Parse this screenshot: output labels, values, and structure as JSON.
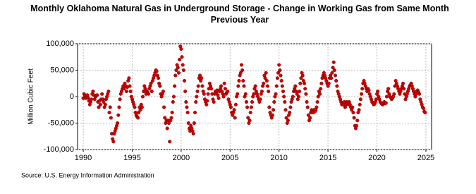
{
  "chart_data": {
    "type": "scatter",
    "title": "Monthly Oklahoma Natural Gas in Underground Storage - Change in Working Gas from Same Month Previous Year",
    "y_label": "Million Cubic Feet",
    "source": "Source: U.S. Energy Information Administration",
    "xlim": [
      1989.42,
      2025.58
    ],
    "ylim": [
      -100000,
      100000
    ],
    "xticks": [
      1990,
      1995,
      2000,
      2005,
      2010,
      2015,
      2020,
      2025
    ],
    "yticks": [
      {
        "value": -100000,
        "label": "-100,000"
      },
      {
        "value": -50000,
        "label": "-50,000"
      },
      0,
      {
        "value": 50000,
        "label": "50,000"
      },
      {
        "value": 100000,
        "label": "100,000"
      }
    ],
    "grid": true,
    "series": [
      {
        "color": "#cc0000",
        "x": [
          1990,
          1990.083,
          1990.167,
          1990.25,
          1990.333,
          1990.417,
          1990.5,
          1990.583,
          1990.667,
          1990.75,
          1990.833,
          1990.917,
          1991,
          1991.083,
          1991.167,
          1991.25,
          1991.333,
          1991.417,
          1991.5,
          1991.583,
          1991.667,
          1991.75,
          1991.833,
          1991.917,
          1992,
          1992.083,
          1992.167,
          1992.25,
          1992.333,
          1992.417,
          1992.5,
          1992.583,
          1992.667,
          1992.75,
          1992.833,
          1992.917,
          1993,
          1993.083,
          1993.167,
          1993.25,
          1993.333,
          1993.417,
          1993.5,
          1993.583,
          1993.667,
          1993.75,
          1993.833,
          1993.917,
          1994,
          1994.083,
          1994.167,
          1994.25,
          1994.333,
          1994.417,
          1994.5,
          1994.583,
          1994.667,
          1994.75,
          1994.833,
          1994.917,
          1995,
          1995.083,
          1995.167,
          1995.25,
          1995.333,
          1995.417,
          1995.5,
          1995.583,
          1995.667,
          1995.75,
          1995.833,
          1995.917,
          1996,
          1996.083,
          1996.167,
          1996.25,
          1996.333,
          1996.417,
          1996.5,
          1996.583,
          1996.667,
          1996.75,
          1996.833,
          1996.917,
          1997,
          1997.083,
          1997.167,
          1997.25,
          1997.333,
          1997.417,
          1997.5,
          1997.583,
          1997.667,
          1997.75,
          1997.833,
          1997.917,
          1998,
          1998.083,
          1998.167,
          1998.25,
          1998.333,
          1998.417,
          1998.5,
          1998.583,
          1998.667,
          1998.75,
          1998.833,
          1998.917,
          1999,
          1999.083,
          1999.167,
          1999.25,
          1999.333,
          1999.417,
          1999.5,
          1999.583,
          1999.667,
          1999.75,
          1999.833,
          1999.917,
          2000,
          2000.083,
          2000.167,
          2000.25,
          2000.333,
          2000.417,
          2000.5,
          2000.583,
          2000.667,
          2000.75,
          2000.833,
          2000.917,
          2001,
          2001.083,
          2001.167,
          2001.25,
          2001.333,
          2001.417,
          2001.5,
          2001.583,
          2001.667,
          2001.75,
          2001.833,
          2001.917,
          2002,
          2002.083,
          2002.167,
          2002.25,
          2002.333,
          2002.417,
          2002.5,
          2002.583,
          2002.667,
          2002.75,
          2002.833,
          2002.917,
          2003,
          2003.083,
          2003.167,
          2003.25,
          2003.333,
          2003.417,
          2003.5,
          2003.583,
          2003.667,
          2003.75,
          2003.833,
          2003.917,
          2004,
          2004.083,
          2004.167,
          2004.25,
          2004.333,
          2004.417,
          2004.5,
          2004.583,
          2004.667,
          2004.75,
          2004.833,
          2004.917,
          2005,
          2005.083,
          2005.167,
          2005.25,
          2005.333,
          2005.417,
          2005.5,
          2005.583,
          2005.667,
          2005.75,
          2005.833,
          2005.917,
          2006,
          2006.083,
          2006.167,
          2006.25,
          2006.333,
          2006.417,
          2006.5,
          2006.583,
          2006.667,
          2006.75,
          2006.833,
          2006.917,
          2007,
          2007.083,
          2007.167,
          2007.25,
          2007.333,
          2007.417,
          2007.5,
          2007.583,
          2007.667,
          2007.75,
          2007.833,
          2007.917,
          2008,
          2008.083,
          2008.167,
          2008.25,
          2008.333,
          2008.417,
          2008.5,
          2008.583,
          2008.667,
          2008.75,
          2008.833,
          2008.917,
          2009,
          2009.083,
          2009.167,
          2009.25,
          2009.333,
          2009.417,
          2009.5,
          2009.583,
          2009.667,
          2009.75,
          2009.833,
          2009.917,
          2010,
          2010.083,
          2010.167,
          2010.25,
          2010.333,
          2010.417,
          2010.5,
          2010.583,
          2010.667,
          2010.75,
          2010.833,
          2010.917,
          2011,
          2011.083,
          2011.167,
          2011.25,
          2011.333,
          2011.417,
          2011.5,
          2011.583,
          2011.667,
          2011.75,
          2011.833,
          2011.917,
          2012,
          2012.083,
          2012.167,
          2012.25,
          2012.333,
          2012.417,
          2012.5,
          2012.583,
          2012.667,
          2012.75,
          2012.833,
          2012.917,
          2013,
          2013.083,
          2013.167,
          2013.25,
          2013.333,
          2013.417,
          2013.5,
          2013.583,
          2013.667,
          2013.75,
          2013.833,
          2013.917,
          2014,
          2014.083,
          2014.167,
          2014.25,
          2014.333,
          2014.417,
          2014.5,
          2014.583,
          2014.667,
          2014.75,
          2014.833,
          2014.917,
          2015,
          2015.083,
          2015.167,
          2015.25,
          2015.333,
          2015.417,
          2015.5,
          2015.583,
          2015.667,
          2015.75,
          2015.833,
          2015.917,
          2016,
          2016.083,
          2016.167,
          2016.25,
          2016.333,
          2016.417,
          2016.5,
          2016.583,
          2016.667,
          2016.75,
          2016.833,
          2016.917,
          2017,
          2017.083,
          2017.167,
          2017.25,
          2017.333,
          2017.417,
          2017.5,
          2017.583,
          2017.667,
          2017.75,
          2017.833,
          2017.917,
          2018,
          2018.083,
          2018.167,
          2018.25,
          2018.333,
          2018.417,
          2018.5,
          2018.583,
          2018.667,
          2018.75,
          2018.833,
          2018.917,
          2019,
          2019.083,
          2019.167,
          2019.25,
          2019.333,
          2019.417,
          2019.5,
          2019.583,
          2019.667,
          2019.75,
          2019.833,
          2019.917,
          2020,
          2020.083,
          2020.167,
          2020.25,
          2020.333,
          2020.417,
          2020.5,
          2020.583,
          2020.667,
          2020.75,
          2020.833,
          2020.917,
          2021,
          2021.083,
          2021.167,
          2021.25,
          2021.333,
          2021.417,
          2021.5,
          2021.583,
          2021.667,
          2021.75,
          2021.833,
          2021.917,
          2022,
          2022.083,
          2022.167,
          2022.25,
          2022.333,
          2022.417,
          2022.5,
          2022.583,
          2022.667,
          2022.75,
          2022.833,
          2022.917,
          2023,
          2023.083,
          2023.167,
          2023.25,
          2023.333,
          2023.417,
          2023.5,
          2023.583,
          2023.667,
          2023.75,
          2023.833,
          2023.917,
          2024,
          2024.083,
          2024.167,
          2024.25,
          2024.333,
          2024.417,
          2024.5,
          2024.583,
          2024.667,
          2024.75,
          2024.833,
          2024.917
        ],
        "values": [
          -3000,
          5000,
          2000,
          -3000,
          0,
          3000,
          -2000,
          -8000,
          -15000,
          -10000,
          -5000,
          5000,
          10000,
          3000,
          -5000,
          0,
          2000,
          3000,
          -10000,
          -20000,
          -8000,
          -15000,
          -5000,
          5000,
          -5000,
          -10000,
          -20000,
          -15000,
          -5000,
          0,
          5000,
          10000,
          -30000,
          -20000,
          -40000,
          -70000,
          -80000,
          -85000,
          -70000,
          -65000,
          -60000,
          -55000,
          -50000,
          -35000,
          -20000,
          -5000,
          5000,
          10000,
          15000,
          20000,
          15000,
          25000,
          20000,
          10000,
          18000,
          30000,
          35000,
          20000,
          10000,
          0,
          -5000,
          -10000,
          -15000,
          -20000,
          -30000,
          -35000,
          -38000,
          -40000,
          -30000,
          -20000,
          -25000,
          -15000,
          -20000,
          0,
          10000,
          20000,
          15000,
          5000,
          10000,
          8000,
          5000,
          15000,
          20000,
          25000,
          10000,
          30000,
          35000,
          40000,
          45000,
          50000,
          48000,
          40000,
          35000,
          25000,
          20000,
          5000,
          0,
          5000,
          10000,
          -20000,
          -40000,
          -50000,
          -45000,
          -60000,
          -45000,
          -50000,
          -85000,
          -45000,
          -40000,
          -30000,
          -10000,
          0,
          20000,
          40000,
          50000,
          60000,
          55000,
          45000,
          70000,
          95000,
          90000,
          75000,
          60000,
          50000,
          30000,
          10000,
          -10000,
          -20000,
          -30000,
          -50000,
          -60000,
          -65000,
          -55000,
          -60000,
          -65000,
          -70000,
          -50000,
          -30000,
          -10000,
          0,
          10000,
          20000,
          35000,
          40000,
          30000,
          35000,
          20000,
          10000,
          5000,
          -5000,
          -10000,
          -15000,
          -8000,
          5000,
          15000,
          25000,
          20000,
          15000,
          5000,
          -5000,
          -10000,
          5000,
          10000,
          8000,
          12000,
          3000,
          -3000,
          10000,
          15000,
          20000,
          10000,
          5000,
          0,
          25000,
          15000,
          5000,
          8000,
          10000,
          -5000,
          -10000,
          -15000,
          -20000,
          -30000,
          -35000,
          -30000,
          -25000,
          -40000,
          -15000,
          0,
          5000,
          20000,
          30000,
          40000,
          45000,
          60000,
          50000,
          30000,
          20000,
          0,
          5000,
          -10000,
          -20000,
          -40000,
          -50000,
          -45000,
          -30000,
          -20000,
          -10000,
          0,
          5000,
          15000,
          20000,
          10000,
          5000,
          0,
          -5000,
          -10000,
          -5000,
          5000,
          10000,
          20000,
          25000,
          40000,
          35000,
          45000,
          30000,
          20000,
          10000,
          -20000,
          -30000,
          -35000,
          -40000,
          -35000,
          -25000,
          -10000,
          0,
          5000,
          20000,
          35000,
          45000,
          60000,
          50000,
          40000,
          30000,
          20000,
          10000,
          0,
          -10000,
          -25000,
          -40000,
          -50000,
          -45000,
          -35000,
          -30000,
          -20000,
          -10000,
          -5000,
          0,
          10000,
          15000,
          20000,
          10000,
          5000,
          -5000,
          0,
          10000,
          25000,
          35000,
          45000,
          40000,
          30000,
          25000,
          15000,
          5000,
          -10000,
          -20000,
          -35000,
          -45000,
          -40000,
          -30000,
          -25000,
          -28000,
          -30000,
          -25000,
          -28000,
          -25000,
          -20000,
          -10000,
          0,
          10000,
          5000,
          15000,
          25000,
          35000,
          40000,
          45000,
          40000,
          35000,
          30000,
          25000,
          20000,
          25000,
          35000,
          40000,
          35000,
          45000,
          55000,
          65000,
          50000,
          40000,
          30000,
          20000,
          10000,
          5000,
          0,
          -5000,
          -10000,
          -15000,
          -12000,
          -15000,
          -10000,
          -20000,
          -15000,
          -10000,
          -12000,
          -15000,
          -10000,
          -15000,
          -20000,
          -25000,
          -20000,
          -30000,
          -40000,
          -55000,
          -60000,
          -55000,
          -45000,
          -30000,
          -25000,
          -15000,
          -5000,
          5000,
          15000,
          25000,
          30000,
          25000,
          20000,
          15000,
          10000,
          15000,
          12000,
          5000,
          0,
          -5000,
          -10000,
          -12000,
          -15000,
          -14000,
          -10000,
          -5000,
          5000,
          10000,
          0,
          -5000,
          -10000,
          -12000,
          -14000,
          -15000,
          -12000,
          -10000,
          -13000,
          -12000,
          0,
          10000,
          15000,
          5000,
          0,
          -2000,
          -5000,
          -3000,
          0,
          5000,
          20000,
          30000,
          25000,
          20000,
          15000,
          10000,
          5000,
          10000,
          15000,
          20000,
          25000,
          15000,
          5000,
          -5000,
          0,
          5000,
          10000,
          15000,
          20000,
          22000,
          25000,
          20000,
          15000,
          10000,
          5000,
          0,
          5000,
          10000,
          12000,
          8000,
          5000,
          -5000,
          -10000,
          -15000,
          -20000,
          -22000,
          -28000,
          -30000
        ]
      }
    ]
  }
}
